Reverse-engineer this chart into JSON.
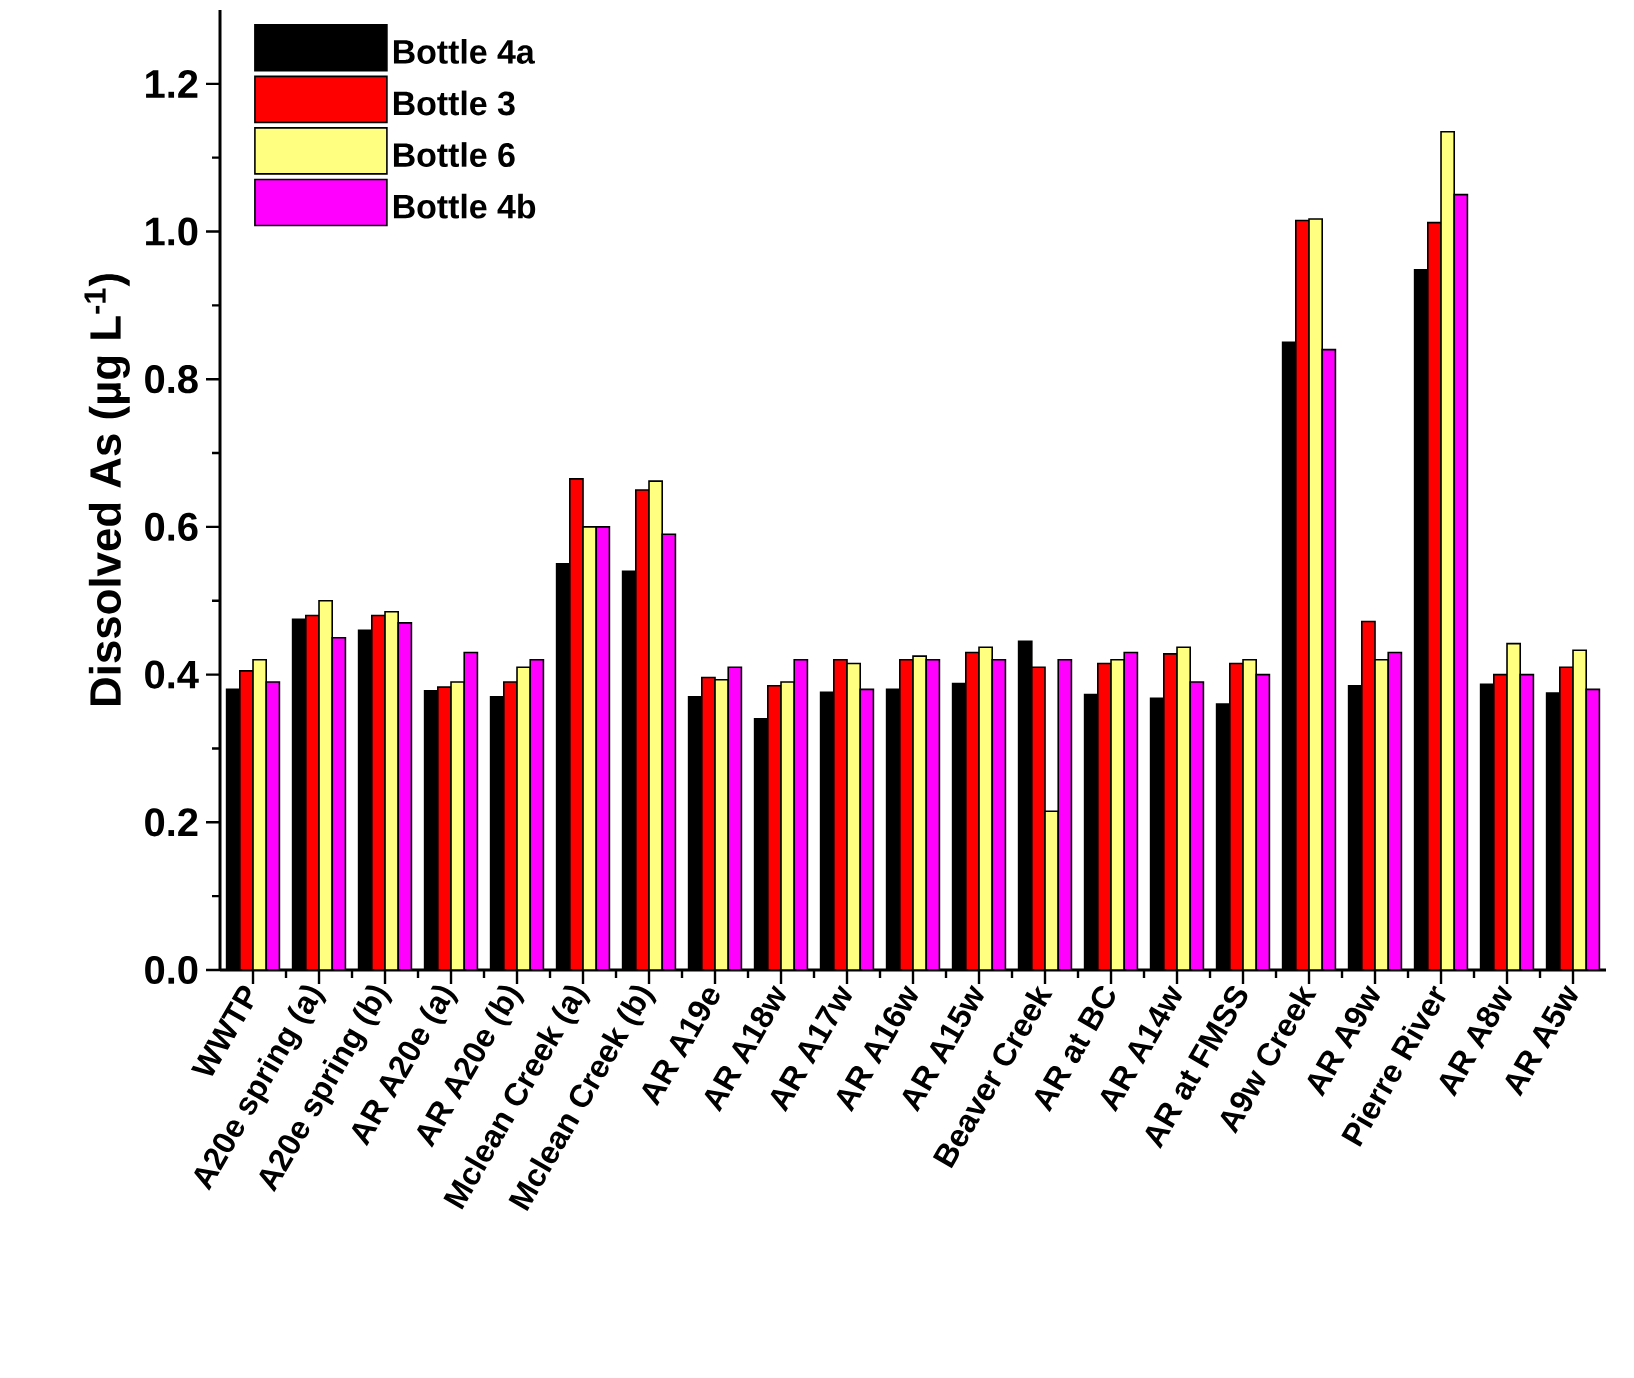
{
  "chart_data": {
    "type": "bar",
    "ylabel": "Dissolved As (µg L$^{-1}$)",
    "categories": [
      "WWTP",
      "A20e spring (a)",
      "A20e spring (b)",
      "AR A20e (a)",
      "AR A20e (b)",
      "Mclean Creek (a)",
      "Mclean Creek (b)",
      "AR A19e",
      "AR A18w",
      "AR A17w",
      "AR A16w",
      "AR A15w",
      "Beaver Creek",
      "AR at BC",
      "AR A14w",
      "AR at FMSS",
      "A9w Creek",
      "AR A9w",
      "Pierre River",
      "AR A8w",
      "AR A5w"
    ],
    "series": [
      {
        "name": "Bottle 4a",
        "color": "#000000",
        "values": [
          0.38,
          0.475,
          0.46,
          0.378,
          0.37,
          0.55,
          0.54,
          0.37,
          0.34,
          0.376,
          0.38,
          0.388,
          0.445,
          0.373,
          0.368,
          0.36,
          0.85,
          0.385,
          0.948,
          0.387,
          0.375
        ]
      },
      {
        "name": "Bottle 3",
        "color": "#ff0000",
        "values": [
          0.405,
          0.48,
          0.48,
          0.383,
          0.39,
          0.665,
          0.65,
          0.396,
          0.385,
          0.42,
          0.42,
          0.43,
          0.41,
          0.415,
          0.428,
          0.415,
          1.015,
          0.472,
          1.012,
          0.4,
          0.41
        ]
      },
      {
        "name": "Bottle 6",
        "color": "#ffff80",
        "values": [
          0.42,
          0.5,
          0.485,
          0.39,
          0.41,
          0.6,
          0.662,
          0.393,
          0.39,
          0.415,
          0.425,
          0.437,
          0.215,
          0.42,
          0.437,
          0.42,
          1.017,
          0.42,
          1.135,
          0.442,
          0.433
        ]
      },
      {
        "name": "Bottle 4b",
        "color": "#ff00ff",
        "values": [
          0.39,
          0.45,
          0.47,
          0.43,
          0.42,
          0.6,
          0.59,
          0.41,
          0.42,
          0.38,
          0.42,
          0.42,
          0.42,
          0.43,
          0.39,
          0.4,
          0.84,
          0.43,
          1.05,
          0.4,
          0.38
        ]
      }
    ],
    "ylim": [
      0,
      1.3
    ],
    "yticks": [
      {
        "value": 0,
        "label": "0.0"
      },
      {
        "value": 0.2,
        "label": "0.2"
      },
      {
        "value": 0.4,
        "label": "0.4"
      },
      {
        "value": 0.6,
        "label": "0.6"
      },
      {
        "value": 0.8,
        "label": "0.8"
      },
      {
        "value": 1.0,
        "label": "1.0"
      },
      {
        "value": 1.2,
        "label": "1.2"
      }
    ],
    "grid": false,
    "legend": "top left"
  }
}
